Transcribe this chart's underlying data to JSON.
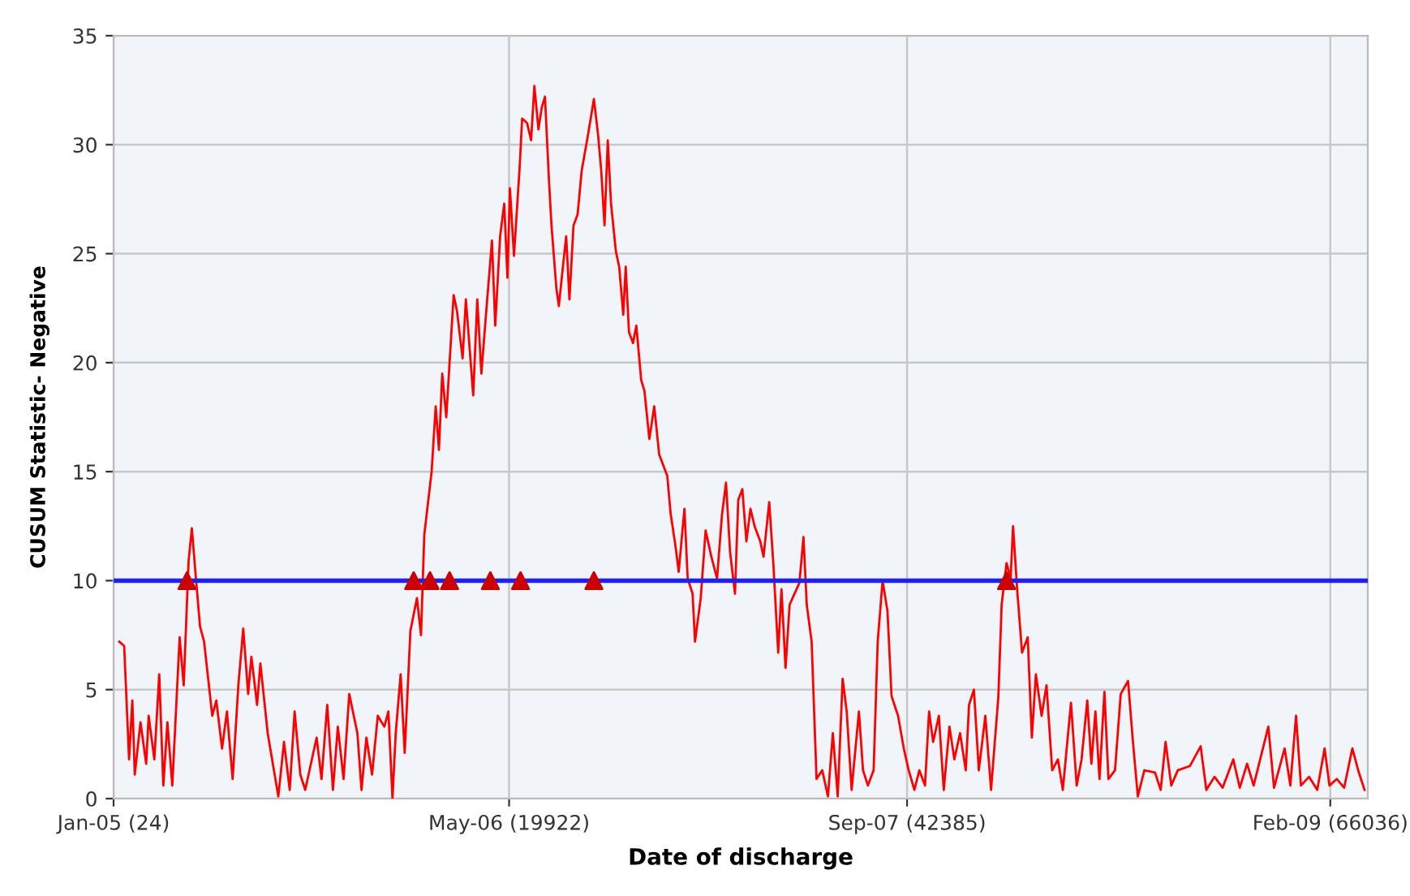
{
  "chart_data": {
    "type": "line",
    "xlabel": "Date of discharge",
    "ylabel": "CUSUM Statistic- Negative",
    "xlim": [
      "2005-01-01",
      "2009-03-19"
    ],
    "ylim": [
      0,
      35
    ],
    "xticks": [
      {
        "value": "2005-01-01",
        "label": "Jan-05 (24)"
      },
      {
        "value": "2006-05-01",
        "label": "May-06 (19922)"
      },
      {
        "value": "2007-09-01",
        "label": "Sep-07 (42385)"
      },
      {
        "value": "2009-02-01",
        "label": "Feb-09 (66036)"
      }
    ],
    "yticks": [
      0,
      5,
      10,
      15,
      20,
      25,
      30,
      35
    ],
    "grid": true,
    "legend": false,
    "ref_lines": [
      {
        "axis": "y",
        "value": 10,
        "color": "#2020f0",
        "line_style": "solid"
      }
    ],
    "series": [
      {
        "type": "line",
        "color": "#ff0000",
        "marker": "none",
        "line_style": "solid",
        "x": [
          "2005-01-08",
          "2005-01-14",
          "2005-01-20",
          "2005-01-24",
          "2005-01-27",
          "2005-02-03",
          "2005-02-10",
          "2005-02-13",
          "2005-02-20",
          "2005-02-26",
          "2005-03-03",
          "2005-03-08",
          "2005-03-14",
          "2005-03-23",
          "2005-03-28",
          "2005-04-03",
          "2005-04-07",
          "2005-04-12",
          "2005-04-17",
          "2005-04-22",
          "2005-05-02",
          "2005-05-07",
          "2005-05-14",
          "2005-05-20",
          "2005-05-27",
          "2005-06-03",
          "2005-06-09",
          "2005-06-15",
          "2005-06-19",
          "2005-06-26",
          "2005-06-30",
          "2005-07-09",
          "2005-07-22",
          "2005-07-29",
          "2005-08-05",
          "2005-08-11",
          "2005-08-18",
          "2005-08-24",
          "2005-09-07",
          "2005-09-13",
          "2005-09-20",
          "2005-09-27",
          "2005-10-03",
          "2005-10-10",
          "2005-10-17",
          "2005-10-27",
          "2005-11-01",
          "2005-11-07",
          "2005-11-14",
          "2005-11-21",
          "2005-11-29",
          "2005-12-04",
          "2005-12-09",
          "2005-12-13",
          "2005-12-19",
          "2005-12-24",
          "2005-12-31",
          "2006-01-08",
          "2006-01-13",
          "2006-01-17",
          "2006-01-26",
          "2006-01-31",
          "2006-02-04",
          "2006-02-08",
          "2006-02-13",
          "2006-02-22",
          "2006-02-26",
          "2006-03-05",
          "2006-03-09",
          "2006-03-18",
          "2006-03-23",
          "2006-03-28",
          "2006-04-02",
          "2006-04-10",
          "2006-04-14",
          "2006-04-20",
          "2006-04-25",
          "2006-04-29",
          "2006-05-02",
          "2006-05-07",
          "2006-05-14",
          "2006-05-17",
          "2006-05-23",
          "2006-05-28",
          "2006-06-01",
          "2006-06-06",
          "2006-06-10",
          "2006-06-14",
          "2006-06-19",
          "2006-06-22",
          "2006-06-28",
          "2006-07-01",
          "2006-07-06",
          "2006-07-10",
          "2006-07-14",
          "2006-07-19",
          "2006-07-24",
          "2006-07-29",
          "2006-08-06",
          "2006-08-13",
          "2006-08-18",
          "2006-08-22",
          "2006-08-26",
          "2006-08-30",
          "2006-09-03",
          "2006-09-09",
          "2006-09-13",
          "2006-09-18",
          "2006-09-21",
          "2006-09-25",
          "2006-09-30",
          "2006-10-04",
          "2006-10-10",
          "2006-10-14",
          "2006-10-20",
          "2006-10-26",
          "2006-11-01",
          "2006-11-11",
          "2006-11-15",
          "2006-11-21",
          "2006-11-25",
          "2006-12-02",
          "2006-12-06",
          "2006-12-12",
          "2006-12-15",
          "2006-12-22",
          "2006-12-28",
          "2007-01-04",
          "2007-01-11",
          "2007-01-17",
          "2007-01-22",
          "2007-01-27",
          "2007-02-02",
          "2007-02-06",
          "2007-02-11",
          "2007-02-16",
          "2007-02-21",
          "2007-02-26",
          "2007-03-05",
          "2007-03-09",
          "2007-03-16",
          "2007-03-21",
          "2007-03-27",
          "2007-03-31",
          "2007-04-05",
          "2007-04-10",
          "2007-04-22",
          "2007-04-27",
          "2007-05-01",
          "2007-05-07",
          "2007-05-13",
          "2007-05-20",
          "2007-05-27",
          "2007-06-02",
          "2007-06-08",
          "2007-06-14",
          "2007-06-19",
          "2007-06-25",
          "2007-07-04",
          "2007-07-09",
          "2007-07-15",
          "2007-07-22",
          "2007-07-27",
          "2007-08-02",
          "2007-08-08",
          "2007-08-13",
          "2007-08-21",
          "2007-08-28",
          "2007-09-03",
          "2007-09-10",
          "2007-09-16",
          "2007-09-23",
          "2007-09-28",
          "2007-10-03",
          "2007-10-10",
          "2007-10-16",
          "2007-10-23",
          "2007-10-29",
          "2007-11-05",
          "2007-11-12",
          "2007-11-16",
          "2007-11-22",
          "2007-11-28",
          "2007-12-06",
          "2007-12-13",
          "2007-12-22",
          "2007-12-26",
          "2008-01-01",
          "2008-01-06",
          "2008-01-09",
          "2008-01-14",
          "2008-01-20",
          "2008-01-27",
          "2008-02-01",
          "2008-02-06",
          "2008-02-13",
          "2008-02-19",
          "2008-02-26",
          "2008-03-04",
          "2008-03-10",
          "2008-03-20",
          "2008-03-27",
          "2008-04-02",
          "2008-04-09",
          "2008-04-14",
          "2008-04-19",
          "2008-04-24",
          "2008-04-30",
          "2008-05-05",
          "2008-05-13",
          "2008-05-20",
          "2008-05-29",
          "2008-06-04",
          "2008-06-10",
          "2008-06-18",
          "2008-07-01",
          "2008-07-08",
          "2008-07-14",
          "2008-07-21",
          "2008-07-29",
          "2008-08-13",
          "2008-08-26",
          "2008-09-02",
          "2008-09-12",
          "2008-09-22",
          "2008-10-05",
          "2008-10-13",
          "2008-10-22",
          "2008-10-30",
          "2008-11-17",
          "2008-11-24",
          "2008-12-07",
          "2008-12-14",
          "2008-12-21",
          "2008-12-27",
          "2009-01-06",
          "2009-01-16",
          "2009-01-25",
          "2009-01-31",
          "2009-02-09",
          "2009-02-18",
          "2009-02-28",
          "2009-03-08",
          "2009-03-15"
        ],
        "values": [
          7.2,
          7,
          1.8,
          4.5,
          1.1,
          3.5,
          1.6,
          3.8,
          1.8,
          5.7,
          0.6,
          3.5,
          0.6,
          7.4,
          5.2,
          10.9,
          12.4,
          10.1,
          7.9,
          7.2,
          3.8,
          4.5,
          2.3,
          4,
          0.9,
          5.2,
          7.8,
          4.8,
          6.5,
          4.3,
          6.2,
          3,
          0.1,
          2.6,
          0.4,
          4,
          1.1,
          0.4,
          2.8,
          0.9,
          4.3,
          0.4,
          3.3,
          0.9,
          4.8,
          3,
          0.4,
          2.8,
          1.1,
          3.8,
          3.3,
          4,
          0,
          3,
          5.7,
          2.1,
          7.7,
          9.2,
          7.5,
          12.1,
          15,
          18,
          16,
          19.5,
          17.5,
          23.1,
          22.4,
          20.2,
          22.9,
          18.5,
          22.9,
          19.5,
          21.9,
          25.6,
          21.7,
          25.8,
          27.3,
          23.9,
          28,
          24.9,
          29,
          31.2,
          31,
          30.2,
          32.7,
          30.7,
          31.7,
          32.2,
          28.3,
          26.3,
          23.4,
          22.6,
          24.4,
          25.8,
          22.9,
          26.3,
          26.8,
          28.8,
          30.5,
          32.1,
          30.5,
          28.8,
          26.3,
          30.2,
          27.3,
          25.1,
          24.4,
          22.2,
          24.4,
          21.4,
          20.9,
          21.7,
          19.2,
          18.7,
          16.5,
          18,
          15.8,
          14.8,
          13.1,
          11.6,
          10.4,
          13.3,
          10.1,
          9.4,
          7.2,
          9.2,
          12.3,
          11.1,
          10.1,
          13,
          14.5,
          11.3,
          9.4,
          13.7,
          14.2,
          11.8,
          13.3,
          12.5,
          11.8,
          11.1,
          13.6,
          10.8,
          6.7,
          9.6,
          6,
          8.9,
          9.9,
          12,
          8.9,
          7.2,
          0.9,
          1.3,
          0.1,
          3,
          0.1,
          5.5,
          4,
          0.4,
          4,
          1.3,
          0.6,
          1.3,
          7.2,
          10,
          8.6,
          4.7,
          3.8,
          2.3,
          1.3,
          0.4,
          1.3,
          0.6,
          4,
          2.6,
          3.8,
          0.4,
          3.3,
          1.8,
          3,
          1.3,
          4.3,
          5,
          1.3,
          3.8,
          0.4,
          4.7,
          8.9,
          10.8,
          10.1,
          12.5,
          9.6,
          6.7,
          7.4,
          2.8,
          5.7,
          3.8,
          5.2,
          1.3,
          1.8,
          0.4,
          4.4,
          0.6,
          1.8,
          4.5,
          1.6,
          4,
          0.9,
          4.9,
          0.9,
          1.3,
          4.8,
          5.4,
          2.6,
          0.1,
          1.3,
          1.2,
          0.4,
          2.6,
          0.6,
          1.3,
          1.5,
          2.4,
          0.4,
          1,
          0.5,
          1.8,
          0.5,
          1.6,
          0.6,
          3.3,
          0.5,
          2.3,
          0.6,
          3.8,
          0.6,
          1,
          0.4,
          2.3,
          0.6,
          0.9,
          0.5,
          2.3,
          1.2,
          0.4
        ]
      },
      {
        "type": "scatter",
        "color": "#cc0000",
        "marker": "triangle",
        "x": [
          "2005-04-01",
          "2006-01-04",
          "2006-01-24",
          "2006-02-17",
          "2006-04-08",
          "2006-05-15",
          "2006-08-13",
          "2008-01-01"
        ],
        "values": [
          10,
          10,
          10,
          10,
          10,
          10,
          10,
          10
        ]
      }
    ]
  }
}
